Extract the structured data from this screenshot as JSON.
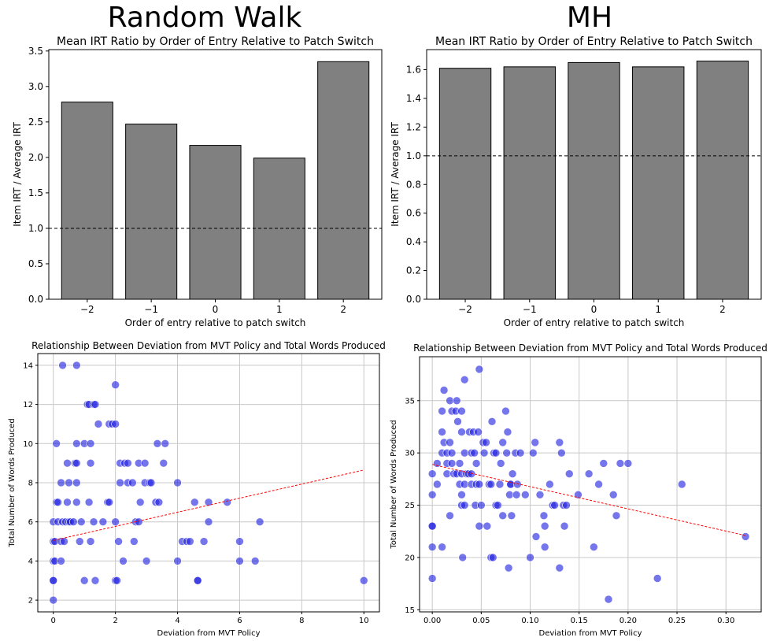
{
  "section_titles": {
    "left": "Random Walk",
    "right": "MH"
  },
  "colors": {
    "bar": "#808080",
    "bar_edge": "#000000",
    "point": "#2020e0",
    "trend": "#ff0000"
  },
  "chart_data": [
    {
      "type": "bar",
      "title": "Mean IRT Ratio by Order of Entry Relative to Patch Switch",
      "xlabel": "Order of entry relative to patch switch",
      "ylabel": "Item IRT / Average IRT",
      "categories": [
        "−2",
        "−1",
        "0",
        "1",
        "2"
      ],
      "values": [
        2.78,
        2.47,
        2.17,
        1.99,
        3.35
      ],
      "ylim": [
        0,
        3.52
      ],
      "yticks": [
        "0.0",
        "0.5",
        "1.0",
        "1.5",
        "2.0",
        "2.5",
        "3.0",
        "3.5"
      ],
      "reference_line": 1.0
    },
    {
      "type": "bar",
      "title": "Mean IRT Ratio by Order of Entry Relative to Patch Switch",
      "xlabel": "Order of entry relative to patch switch",
      "ylabel": "Item IRT / Average IRT",
      "categories": [
        "−2",
        "−1",
        "0",
        "1",
        "2"
      ],
      "values": [
        1.61,
        1.62,
        1.65,
        1.62,
        1.66
      ],
      "ylim": [
        0,
        1.74
      ],
      "yticks": [
        "0.0",
        "0.2",
        "0.4",
        "0.6",
        "0.8",
        "1.0",
        "1.2",
        "1.4",
        "1.6"
      ],
      "reference_line": 1.0
    },
    {
      "type": "scatter",
      "title": "Relationship Between Deviation from MVT Policy and Total Words Produced",
      "xlabel": "Deviation from MVT Policy",
      "ylabel": "Total Number of Words Produced",
      "xlim": [
        -0.5,
        10.5
      ],
      "ylim": [
        1.4,
        14.6
      ],
      "xticks": [
        0,
        2,
        4,
        6,
        8,
        10
      ],
      "xtick_labels": [
        "0",
        "2",
        "4",
        "6",
        "8",
        "10"
      ],
      "yticks": [
        2,
        4,
        6,
        8,
        10,
        12,
        14
      ],
      "ytick_labels": [
        "2",
        "4",
        "6",
        "8",
        "10",
        "12",
        "14"
      ],
      "trend": {
        "x": [
          0.0,
          10.0
        ],
        "y": [
          5.05,
          8.65
        ]
      },
      "points": [
        [
          0.0,
          2
        ],
        [
          0.0,
          3
        ],
        [
          0.0,
          3
        ],
        [
          0.0,
          4
        ],
        [
          0.05,
          4
        ],
        [
          0.0,
          5
        ],
        [
          0.05,
          5
        ],
        [
          0.0,
          6
        ],
        [
          0.15,
          6
        ],
        [
          0.1,
          7
        ],
        [
          0.15,
          7
        ],
        [
          0.1,
          10
        ],
        [
          0.25,
          4
        ],
        [
          0.25,
          5
        ],
        [
          0.3,
          6
        ],
        [
          0.25,
          8
        ],
        [
          0.3,
          14
        ],
        [
          0.35,
          5
        ],
        [
          0.4,
          6
        ],
        [
          0.45,
          7
        ],
        [
          0.45,
          9
        ],
        [
          0.5,
          6
        ],
        [
          0.5,
          8
        ],
        [
          0.55,
          6
        ],
        [
          0.65,
          6
        ],
        [
          0.7,
          9
        ],
        [
          0.75,
          9
        ],
        [
          0.75,
          14
        ],
        [
          0.75,
          7
        ],
        [
          0.75,
          8
        ],
        [
          0.75,
          10
        ],
        [
          0.85,
          5
        ],
        [
          0.9,
          6
        ],
        [
          1.0,
          3
        ],
        [
          1.0,
          10
        ],
        [
          1.1,
          12
        ],
        [
          1.15,
          12
        ],
        [
          1.15,
          7
        ],
        [
          1.2,
          10
        ],
        [
          1.2,
          5
        ],
        [
          1.2,
          9
        ],
        [
          1.3,
          12
        ],
        [
          1.35,
          12
        ],
        [
          1.3,
          6
        ],
        [
          1.35,
          3
        ],
        [
          1.45,
          11
        ],
        [
          1.6,
          6
        ],
        [
          1.75,
          7
        ],
        [
          1.8,
          7
        ],
        [
          1.8,
          11
        ],
        [
          1.9,
          11
        ],
        [
          2.0,
          3
        ],
        [
          2.0,
          6
        ],
        [
          2.0,
          13
        ],
        [
          2.0,
          11
        ],
        [
          2.05,
          3
        ],
        [
          2.1,
          5
        ],
        [
          2.15,
          8
        ],
        [
          2.15,
          9
        ],
        [
          2.25,
          4
        ],
        [
          2.3,
          9
        ],
        [
          2.4,
          9
        ],
        [
          2.4,
          8
        ],
        [
          2.55,
          8
        ],
        [
          2.6,
          5
        ],
        [
          2.65,
          6
        ],
        [
          2.75,
          6
        ],
        [
          2.75,
          9
        ],
        [
          2.8,
          7
        ],
        [
          2.95,
          9
        ],
        [
          2.95,
          8
        ],
        [
          3.0,
          4
        ],
        [
          3.1,
          8
        ],
        [
          3.15,
          8
        ],
        [
          3.3,
          7
        ],
        [
          3.35,
          10
        ],
        [
          3.4,
          7
        ],
        [
          3.55,
          9
        ],
        [
          3.6,
          10
        ],
        [
          4.0,
          4
        ],
        [
          4.0,
          8
        ],
        [
          4.15,
          5
        ],
        [
          4.3,
          5
        ],
        [
          4.4,
          5
        ],
        [
          4.55,
          7
        ],
        [
          4.65,
          3
        ],
        [
          4.65,
          3
        ],
        [
          4.85,
          5
        ],
        [
          5.0,
          6
        ],
        [
          5.0,
          7
        ],
        [
          5.6,
          7
        ],
        [
          6.0,
          5
        ],
        [
          6.0,
          4
        ],
        [
          6.5,
          4
        ],
        [
          6.65,
          6
        ],
        [
          10.0,
          3
        ]
      ]
    },
    {
      "type": "scatter",
      "title": "Relationship Between Deviation from MVT Policy and Total Words Produced",
      "xlabel": "Deviation from MVT Policy",
      "ylabel": "Total Number of Words Produced",
      "xlim": [
        -0.013,
        0.336
      ],
      "ylim": [
        14.8,
        39.2
      ],
      "xticks": [
        0.0,
        0.05,
        0.1,
        0.15,
        0.2,
        0.25,
        0.3
      ],
      "xtick_labels": [
        "0.00",
        "0.05",
        "0.10",
        "0.15",
        "0.20",
        "0.25",
        "0.30"
      ],
      "yticks": [
        15,
        20,
        25,
        30,
        35
      ],
      "ytick_labels": [
        "15",
        "20",
        "25",
        "30",
        "35"
      ],
      "trend": {
        "x": [
          0.0,
          0.32
        ],
        "y": [
          28.9,
          22.1
        ]
      },
      "points": [
        [
          0.0,
          18
        ],
        [
          0.0,
          21
        ],
        [
          0.0,
          23
        ],
        [
          0.0,
          23
        ],
        [
          0.0,
          26
        ],
        [
          0.0,
          28
        ],
        [
          0.005,
          27
        ],
        [
          0.005,
          29
        ],
        [
          0.01,
          21
        ],
        [
          0.01,
          30
        ],
        [
          0.01,
          32
        ],
        [
          0.01,
          34
        ],
        [
          0.012,
          31
        ],
        [
          0.012,
          36
        ],
        [
          0.015,
          28
        ],
        [
          0.015,
          29
        ],
        [
          0.015,
          30
        ],
        [
          0.018,
          24
        ],
        [
          0.018,
          31
        ],
        [
          0.018,
          35
        ],
        [
          0.02,
          29
        ],
        [
          0.02,
          30
        ],
        [
          0.02,
          34
        ],
        [
          0.022,
          28
        ],
        [
          0.024,
          34
        ],
        [
          0.025,
          35
        ],
        [
          0.025,
          28
        ],
        [
          0.026,
          33
        ],
        [
          0.028,
          29
        ],
        [
          0.028,
          27
        ],
        [
          0.03,
          25
        ],
        [
          0.03,
          26
        ],
        [
          0.03,
          28
        ],
        [
          0.03,
          32
        ],
        [
          0.03,
          34
        ],
        [
          0.031,
          20
        ],
        [
          0.033,
          25
        ],
        [
          0.033,
          27
        ],
        [
          0.033,
          30
        ],
        [
          0.033,
          37
        ],
        [
          0.035,
          28
        ],
        [
          0.037,
          28
        ],
        [
          0.038,
          32
        ],
        [
          0.04,
          30
        ],
        [
          0.04,
          28
        ],
        [
          0.04,
          27
        ],
        [
          0.042,
          32
        ],
        [
          0.043,
          30
        ],
        [
          0.044,
          25
        ],
        [
          0.045,
          27
        ],
        [
          0.045,
          29
        ],
        [
          0.047,
          32
        ],
        [
          0.048,
          23
        ],
        [
          0.048,
          27
        ],
        [
          0.048,
          38
        ],
        [
          0.05,
          25
        ],
        [
          0.052,
          31
        ],
        [
          0.053,
          30
        ],
        [
          0.055,
          31
        ],
        [
          0.056,
          23
        ],
        [
          0.058,
          27
        ],
        [
          0.06,
          20
        ],
        [
          0.06,
          27
        ],
        [
          0.061,
          33
        ],
        [
          0.062,
          20
        ],
        [
          0.063,
          30
        ],
        [
          0.065,
          25
        ],
        [
          0.065,
          30
        ],
        [
          0.067,
          25
        ],
        [
          0.069,
          27
        ],
        [
          0.07,
          29
        ],
        [
          0.072,
          31
        ],
        [
          0.072,
          24
        ],
        [
          0.075,
          34
        ],
        [
          0.076,
          30
        ],
        [
          0.077,
          32
        ],
        [
          0.078,
          19
        ],
        [
          0.079,
          26
        ],
        [
          0.08,
          27
        ],
        [
          0.08,
          27
        ],
        [
          0.081,
          24
        ],
        [
          0.082,
          28
        ],
        [
          0.085,
          30
        ],
        [
          0.086,
          26
        ],
        [
          0.087,
          27
        ],
        [
          0.09,
          30
        ],
        [
          0.095,
          26
        ],
        [
          0.1,
          20
        ],
        [
          0.103,
          30
        ],
        [
          0.105,
          31
        ],
        [
          0.106,
          22
        ],
        [
          0.11,
          26
        ],
        [
          0.114,
          24
        ],
        [
          0.115,
          23
        ],
        [
          0.115,
          21
        ],
        [
          0.12,
          27
        ],
        [
          0.123,
          25
        ],
        [
          0.125,
          25
        ],
        [
          0.13,
          19
        ],
        [
          0.13,
          31
        ],
        [
          0.132,
          30
        ],
        [
          0.134,
          25
        ],
        [
          0.135,
          23
        ],
        [
          0.137,
          25
        ],
        [
          0.14,
          28
        ],
        [
          0.149,
          26
        ],
        [
          0.16,
          28
        ],
        [
          0.165,
          21
        ],
        [
          0.17,
          27
        ],
        [
          0.175,
          29
        ],
        [
          0.18,
          16
        ],
        [
          0.185,
          26
        ],
        [
          0.188,
          24
        ],
        [
          0.192,
          29
        ],
        [
          0.2,
          29
        ],
        [
          0.23,
          18
        ],
        [
          0.255,
          27
        ],
        [
          0.32,
          22
        ]
      ]
    }
  ]
}
